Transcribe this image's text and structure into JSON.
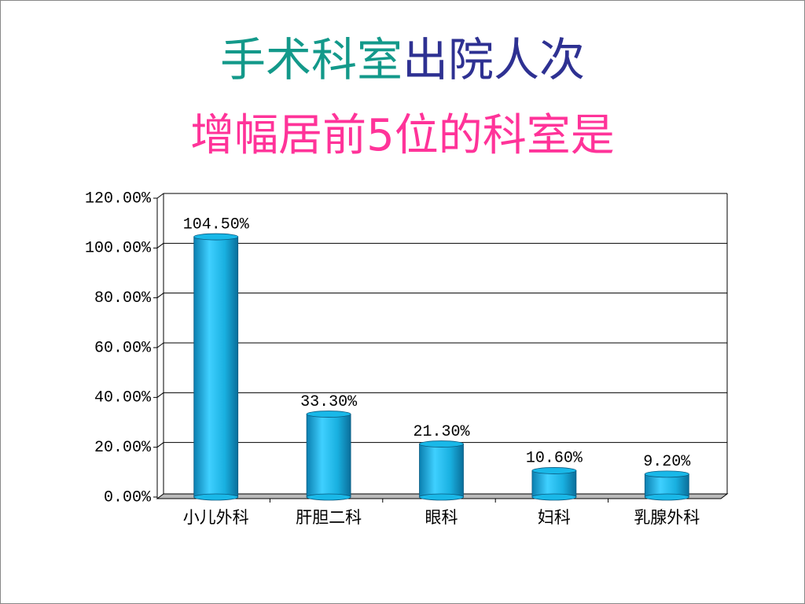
{
  "chart_data": {
    "type": "bar",
    "title_parts": [
      {
        "text": "手术科室",
        "color": "#13998a"
      },
      {
        "text": "出院人次",
        "color": "#2e3192"
      }
    ],
    "subtitle": "增幅居前5位的科室是",
    "subtitle_color": "#ff3399",
    "categories": [
      "小儿外科",
      "肝胆二科",
      "眼科",
      "妇科",
      "乳腺外科"
    ],
    "values": [
      104.5,
      33.3,
      21.3,
      10.6,
      9.2
    ],
    "value_labels": [
      "104.50%",
      "33.30%",
      "21.30%",
      "10.60%",
      "9.20%"
    ],
    "color": "#19b8e8",
    "ylim": [
      0,
      120
    ],
    "yticks": [
      {
        "value": 0,
        "label": "0.00%"
      },
      {
        "value": 20,
        "label": "20.00%"
      },
      {
        "value": 40,
        "label": "40.00%"
      },
      {
        "value": 60,
        "label": "60.00%"
      },
      {
        "value": 80,
        "label": "80.00%"
      },
      {
        "value": 100,
        "label": "100.00%"
      },
      {
        "value": 120,
        "label": "120.00%"
      }
    ],
    "grid": true
  }
}
